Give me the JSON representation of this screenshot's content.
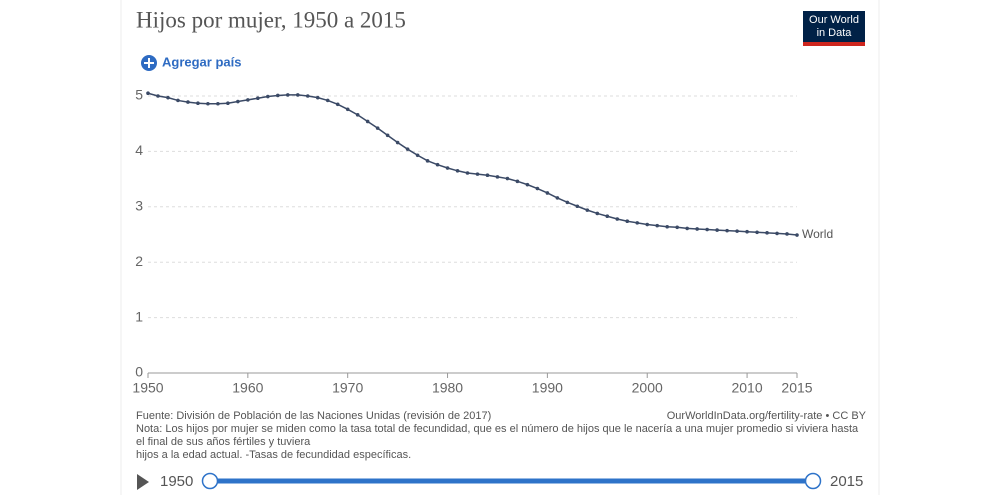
{
  "chart_data": {
    "type": "line",
    "title": "Hijos por mujer, 1950 a 2015",
    "x": [
      1950,
      1951,
      1952,
      1953,
      1954,
      1955,
      1956,
      1957,
      1958,
      1959,
      1960,
      1961,
      1962,
      1963,
      1964,
      1965,
      1966,
      1967,
      1968,
      1969,
      1970,
      1971,
      1972,
      1973,
      1974,
      1975,
      1976,
      1977,
      1978,
      1979,
      1980,
      1981,
      1982,
      1983,
      1984,
      1985,
      1986,
      1987,
      1988,
      1989,
      1990,
      1991,
      1992,
      1993,
      1994,
      1995,
      1996,
      1997,
      1998,
      1999,
      2000,
      2001,
      2002,
      2003,
      2004,
      2005,
      2006,
      2007,
      2008,
      2009,
      2010,
      2011,
      2012,
      2013,
      2014,
      2015
    ],
    "series": [
      {
        "name": "World",
        "color": "#3b4a66",
        "values": [
          5.05,
          5.0,
          4.97,
          4.92,
          4.89,
          4.87,
          4.86,
          4.86,
          4.87,
          4.9,
          4.93,
          4.96,
          4.99,
          5.01,
          5.02,
          5.02,
          5.0,
          4.97,
          4.92,
          4.85,
          4.76,
          4.66,
          4.54,
          4.42,
          4.29,
          4.16,
          4.04,
          3.93,
          3.83,
          3.76,
          3.7,
          3.65,
          3.61,
          3.59,
          3.57,
          3.54,
          3.51,
          3.46,
          3.4,
          3.33,
          3.25,
          3.16,
          3.08,
          3.01,
          2.94,
          2.88,
          2.83,
          2.78,
          2.74,
          2.71,
          2.68,
          2.66,
          2.64,
          2.63,
          2.61,
          2.6,
          2.59,
          2.58,
          2.57,
          2.56,
          2.55,
          2.54,
          2.53,
          2.52,
          2.51,
          2.49
        ]
      }
    ],
    "xlim": [
      1950,
      2015
    ],
    "xticks": [
      1950,
      1960,
      1970,
      1980,
      1990,
      2000,
      2010,
      2015
    ],
    "ylim": [
      0,
      5
    ],
    "yticks": [
      0,
      1,
      2,
      3,
      4,
      5
    ],
    "grid": true
  },
  "add_button": "Agregar país",
  "logo": [
    "Our World",
    "in Data"
  ],
  "source": "Fuente: División de Población de las Naciones Unidas (revisión de 2017)",
  "url": "OurWorldInData.org/fertility-rate • CC BY",
  "note": [
    "Nota: Los hijos por mujer se miden como la tasa total de fecundidad, que es el número de hijos que le nacería a una mujer promedio si viviera hasta",
    "el final de sus años fértiles y tuviera",
    "hijos a la edad actual. -Tasas de fecundidad específicas."
  ],
  "timeline": {
    "start": 1950,
    "end": 2015
  }
}
